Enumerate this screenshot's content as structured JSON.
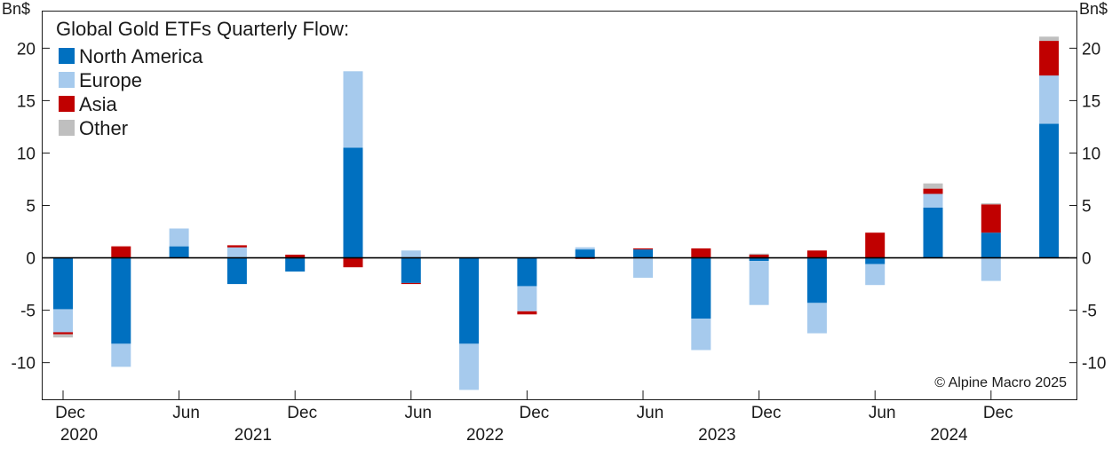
{
  "chart_data": {
    "type": "bar",
    "stacked": true,
    "title": "Global Gold ETFs Quarterly Flow:",
    "ylabel_left": "Bn$",
    "ylabel_right": "Bn$",
    "ylim": [
      -13.5,
      23.5
    ],
    "yticks": [
      {
        "value": 20,
        "label": "20"
      },
      {
        "value": 15,
        "label": "15"
      },
      {
        "value": 10,
        "label": "10"
      },
      {
        "value": 5,
        "label": "5"
      },
      {
        "value": 0,
        "label": "0"
      },
      {
        "value": -5,
        "label": "-5"
      },
      {
        "value": -10,
        "label": "-10"
      }
    ],
    "categories": [
      "2020Q4",
      "2021Q1",
      "2021Q2",
      "2021Q3",
      "2021Q4",
      "2022Q1",
      "2022Q2",
      "2022Q3",
      "2022Q4",
      "2023Q1",
      "2023Q2",
      "2023Q3",
      "2023Q4",
      "2024Q1",
      "2024Q2",
      "2024Q3",
      "2024Q4",
      "2025Q1"
    ],
    "series": [
      {
        "name": "North America",
        "color": "#0070c0",
        "values": [
          -4.9,
          -8.2,
          1.1,
          -2.5,
          -1.3,
          10.5,
          -2.4,
          -8.2,
          -2.7,
          0.8,
          0.8,
          -5.8,
          -0.3,
          -4.3,
          -0.6,
          4.8,
          2.4,
          12.8
        ]
      },
      {
        "name": "Europe",
        "color": "#a6caed",
        "values": [
          -2.2,
          -2.2,
          1.7,
          1.0,
          0.0,
          7.3,
          0.7,
          -4.4,
          -2.4,
          0.2,
          -1.9,
          -3.0,
          -4.2,
          -2.9,
          -2.0,
          1.3,
          -2.2,
          4.6
        ]
      },
      {
        "name": "Asia",
        "color": "#c00000",
        "values": [
          -0.2,
          1.1,
          0.0,
          0.2,
          0.3,
          -0.9,
          -0.1,
          0.0,
          -0.3,
          -0.1,
          0.1,
          0.9,
          0.3,
          0.7,
          2.4,
          0.5,
          2.7,
          3.3
        ]
      },
      {
        "name": "Other",
        "color": "#bfbfbf",
        "values": [
          -0.3,
          0.0,
          0.0,
          0.0,
          0.0,
          0.0,
          0.0,
          0.0,
          0.0,
          0.0,
          0.0,
          0.0,
          0.1,
          0.0,
          0.0,
          0.5,
          0.1,
          0.4
        ]
      }
    ],
    "xaxis": {
      "month_labels": [
        {
          "index": 0,
          "label": "Dec"
        },
        {
          "index": 2,
          "label": "Jun"
        },
        {
          "index": 4,
          "label": "Dec"
        },
        {
          "index": 6,
          "label": "Jun"
        },
        {
          "index": 8,
          "label": "Dec"
        },
        {
          "index": 10,
          "label": "Jun"
        },
        {
          "index": 12,
          "label": "Dec"
        },
        {
          "index": 14,
          "label": "Jun"
        },
        {
          "index": 16,
          "label": "Dec"
        }
      ],
      "year_labels": [
        {
          "index": 0,
          "label": "2020"
        },
        {
          "index": 3,
          "label": "2021"
        },
        {
          "index": 7,
          "label": "2022"
        },
        {
          "index": 11,
          "label": "2023"
        },
        {
          "index": 15,
          "label": "2024"
        }
      ]
    },
    "legend_position": "top-left",
    "annotation": "© Alpine Macro 2025"
  }
}
